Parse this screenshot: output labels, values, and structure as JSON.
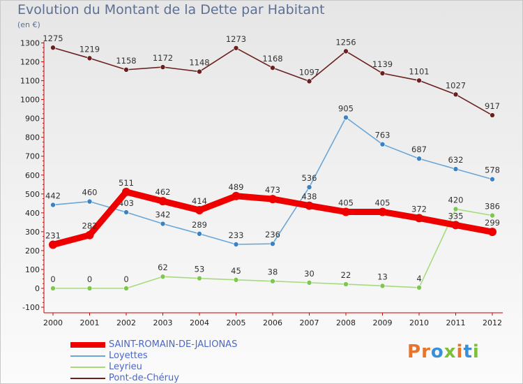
{
  "chart_data": {
    "type": "line",
    "title": "Evolution du Montant de la Dette par Habitant",
    "subtitle": "(en €)",
    "xlabel": "",
    "ylabel": "",
    "x": [
      "2000",
      "2001",
      "2002",
      "2003",
      "2004",
      "2005",
      "2006",
      "2007",
      "2008",
      "2009",
      "2010",
      "2011",
      "2012"
    ],
    "ylim": [
      -100,
      1300
    ],
    "yticks": [
      -100,
      0,
      100,
      200,
      300,
      400,
      500,
      600,
      700,
      800,
      900,
      1000,
      1100,
      1200,
      1300
    ],
    "grid": false,
    "legend_position": "bottom-left",
    "series": [
      {
        "name": "Pont-de-Chéruy",
        "color": "#6b2020",
        "marker": "#6b2020",
        "values": [
          1275,
          1219,
          1158,
          1172,
          1148,
          1273,
          1168,
          1097,
          1256,
          1139,
          1101,
          1027,
          917
        ]
      },
      {
        "name": "Loyettes",
        "color": "#6aa6d6",
        "marker": "#3b82c4",
        "values": [
          442,
          460,
          403,
          342,
          289,
          233,
          236,
          536,
          905,
          763,
          687,
          632,
          578
        ]
      },
      {
        "name": "Leyrieu",
        "color": "#a6db7c",
        "marker": "#7cc84e",
        "values": [
          0,
          0,
          0,
          62,
          53,
          45,
          38,
          30,
          22,
          13,
          4,
          420,
          386
        ]
      },
      {
        "name": "SAINT-ROMAIN-DE-JALIONAS",
        "color": "#ee0000",
        "marker": "#ee0000",
        "values": [
          231,
          282,
          511,
          462,
          414,
          489,
          473,
          438,
          405,
          405,
          372,
          335,
          299
        ]
      }
    ]
  },
  "legend": [
    {
      "label": "SAINT-ROMAIN-DE-JALIONAS",
      "color": "#ee0000"
    },
    {
      "label": "Loyettes",
      "color": "#6aa6d6"
    },
    {
      "label": "Leyrieu",
      "color": "#a6db7c"
    },
    {
      "label": "Pont-de-Chéruy",
      "color": "#6b2020"
    }
  ],
  "logo": {
    "text": "Proxiti"
  }
}
